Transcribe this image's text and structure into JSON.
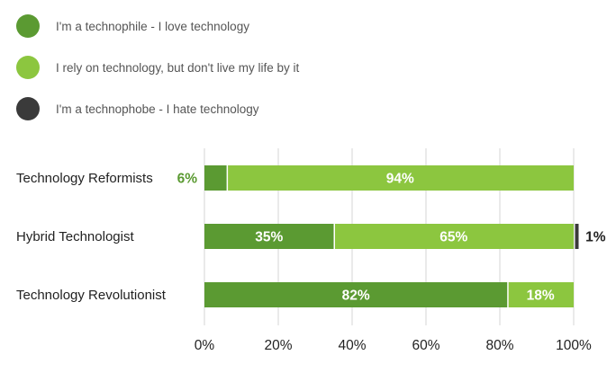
{
  "legend": [
    {
      "label": "I'm a technophile - I love technology",
      "color": "#5b9a32"
    },
    {
      "label": "I rely on technology, but don't live my life by it",
      "color": "#8cc63f"
    },
    {
      "label": "I'm a technophobe - I hate technology",
      "color": "#3a3a3a"
    }
  ],
  "chart_data": {
    "type": "bar",
    "orientation": "horizontal",
    "stacked": true,
    "categories": [
      "Technology Reformists",
      "Hybrid Technologist",
      "Technology Revolutionist"
    ],
    "series": [
      {
        "name": "I'm a technophile - I love technology",
        "color": "#5b9a32",
        "values": [
          6,
          35,
          82
        ],
        "labels": [
          "6%",
          "35%",
          "82%"
        ]
      },
      {
        "name": "I rely on technology, but don't live my life by it",
        "color": "#8cc63f",
        "values": [
          94,
          65,
          18
        ],
        "labels": [
          "94%",
          "65%",
          "18%"
        ]
      },
      {
        "name": "I'm a technophobe - I hate technology",
        "color": "#3a3a3a",
        "values": [
          0,
          1,
          0
        ],
        "labels": [
          "",
          "1%",
          ""
        ]
      }
    ],
    "xlim": [
      0,
      100
    ],
    "xticks": [
      "0%",
      "20%",
      "40%",
      "60%",
      "80%",
      "100%"
    ],
    "grid": true,
    "legend_position": "top-left"
  }
}
